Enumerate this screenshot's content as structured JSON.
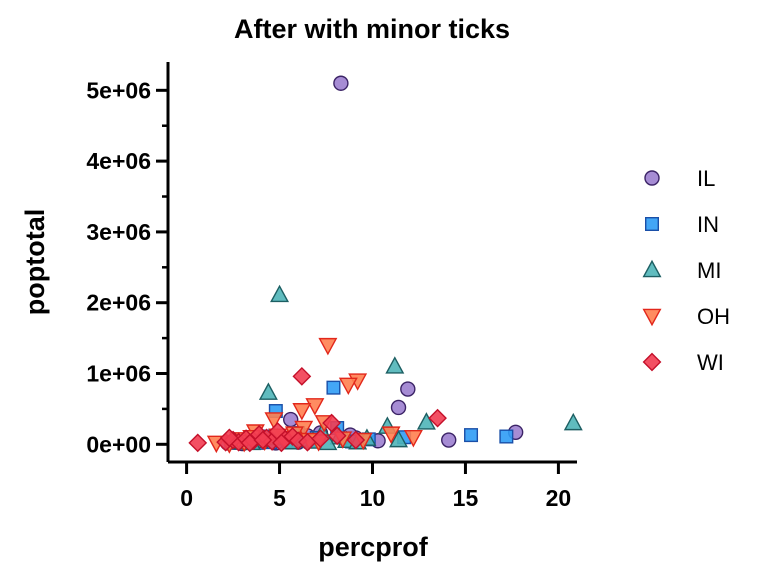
{
  "chart_data": {
    "type": "scatter",
    "title": "After with minor ticks",
    "xlabel": "percprof",
    "ylabel": "poptotal",
    "xlim": [
      -1,
      21
    ],
    "ylim": [
      -250000,
      5400000
    ],
    "x_ticks": [
      0,
      5,
      10,
      15,
      20
    ],
    "x_tick_labels": [
      "0",
      "5",
      "10",
      "15",
      "20"
    ],
    "y_ticks": [
      0,
      1000000,
      2000000,
      3000000,
      4000000,
      5000000
    ],
    "y_tick_labels": [
      "0e+00",
      "1e+06",
      "2e+06",
      "3e+06",
      "4e+06",
      "5e+06"
    ],
    "y_minor_ticks": [
      500000,
      1500000,
      2500000,
      3500000,
      4500000
    ],
    "legend_position": "right",
    "series": [
      {
        "name": "IL",
        "shape": "circle",
        "fill": "#9c7fcf",
        "stroke": "#3b2366",
        "points": [
          [
            8.3,
            5100000
          ],
          [
            11.9,
            780000
          ],
          [
            11.4,
            520000
          ],
          [
            14.1,
            60000
          ],
          [
            17.7,
            170000
          ],
          [
            10.3,
            50000
          ],
          [
            9.1,
            90000
          ],
          [
            7.2,
            160000
          ],
          [
            6.5,
            120000
          ],
          [
            5.6,
            350000
          ],
          [
            5.0,
            60000
          ],
          [
            3.9,
            70000
          ],
          [
            3.2,
            40000
          ],
          [
            2.6,
            30000
          ],
          [
            4.4,
            90000
          ],
          [
            8.8,
            130000
          ],
          [
            6.0,
            30000
          ],
          [
            2.2,
            20000
          ],
          [
            3.0,
            10000
          ],
          [
            4.8,
            20000
          ]
        ]
      },
      {
        "name": "IN",
        "shape": "square",
        "fill": "#2f9cf5",
        "stroke": "#1a4fa8",
        "points": [
          [
            7.9,
            800000
          ],
          [
            4.8,
            470000
          ],
          [
            15.3,
            130000
          ],
          [
            17.2,
            110000
          ],
          [
            8.1,
            230000
          ],
          [
            6.0,
            160000
          ],
          [
            9.8,
            70000
          ],
          [
            3.4,
            60000
          ],
          [
            4.2,
            110000
          ],
          [
            5.5,
            40000
          ],
          [
            2.9,
            30000
          ],
          [
            7.0,
            90000
          ],
          [
            3.8,
            20000
          ],
          [
            11.7,
            100000
          ],
          [
            6.6,
            50000
          ],
          [
            2.4,
            20000
          ],
          [
            4.5,
            30000
          ],
          [
            8.9,
            40000
          ],
          [
            5.1,
            80000
          ],
          [
            3.1,
            40000
          ]
        ]
      },
      {
        "name": "MI",
        "shape": "triangle-up",
        "fill": "#4fb5b8",
        "stroke": "#1d5f63",
        "points": [
          [
            5.0,
            2110000
          ],
          [
            11.2,
            1100000
          ],
          [
            4.4,
            730000
          ],
          [
            20.8,
            300000
          ],
          [
            12.9,
            310000
          ],
          [
            10.8,
            250000
          ],
          [
            7.3,
            160000
          ],
          [
            8.2,
            100000
          ],
          [
            9.7,
            80000
          ],
          [
            11.4,
            60000
          ],
          [
            6.1,
            60000
          ],
          [
            3.9,
            50000
          ],
          [
            4.9,
            90000
          ],
          [
            2.8,
            30000
          ],
          [
            3.5,
            20000
          ],
          [
            6.8,
            40000
          ],
          [
            5.6,
            30000
          ],
          [
            8.6,
            50000
          ],
          [
            9.2,
            30000
          ],
          [
            7.6,
            20000
          ]
        ]
      },
      {
        "name": "OH",
        "shape": "triangle-down",
        "fill": "#ff7f50",
        "stroke": "#e2271b",
        "points": [
          [
            7.6,
            1400000
          ],
          [
            9.2,
            900000
          ],
          [
            8.7,
            840000
          ],
          [
            6.9,
            550000
          ],
          [
            6.2,
            480000
          ],
          [
            4.7,
            350000
          ],
          [
            7.4,
            310000
          ],
          [
            6.3,
            230000
          ],
          [
            3.7,
            180000
          ],
          [
            12.2,
            100000
          ],
          [
            11.0,
            150000
          ],
          [
            9.5,
            60000
          ],
          [
            8.4,
            80000
          ],
          [
            1.6,
            20000
          ],
          [
            2.8,
            70000
          ],
          [
            5.3,
            90000
          ],
          [
            4.2,
            50000
          ],
          [
            3.1,
            30000
          ],
          [
            7.1,
            40000
          ],
          [
            5.8,
            150000
          ],
          [
            2.3,
            10000
          ],
          [
            4.9,
            120000
          ],
          [
            6.6,
            60000
          ],
          [
            3.5,
            100000
          ]
        ]
      },
      {
        "name": "WI",
        "shape": "diamond",
        "fill": "#f23d52",
        "stroke": "#c4102a",
        "points": [
          [
            6.2,
            960000
          ],
          [
            13.5,
            370000
          ],
          [
            7.8,
            300000
          ],
          [
            0.6,
            20000
          ],
          [
            2.1,
            30000
          ],
          [
            2.5,
            60000
          ],
          [
            2.8,
            30000
          ],
          [
            3.2,
            80000
          ],
          [
            3.6,
            50000
          ],
          [
            3.9,
            140000
          ],
          [
            4.3,
            90000
          ],
          [
            4.6,
            40000
          ],
          [
            4.9,
            180000
          ],
          [
            5.3,
            70000
          ],
          [
            5.7,
            110000
          ],
          [
            6.0,
            50000
          ],
          [
            6.5,
            30000
          ],
          [
            7.2,
            80000
          ],
          [
            8.1,
            120000
          ],
          [
            9.1,
            60000
          ],
          [
            3.4,
            20000
          ],
          [
            2.3,
            90000
          ],
          [
            5.1,
            20000
          ],
          [
            4.1,
            60000
          ]
        ]
      }
    ]
  }
}
